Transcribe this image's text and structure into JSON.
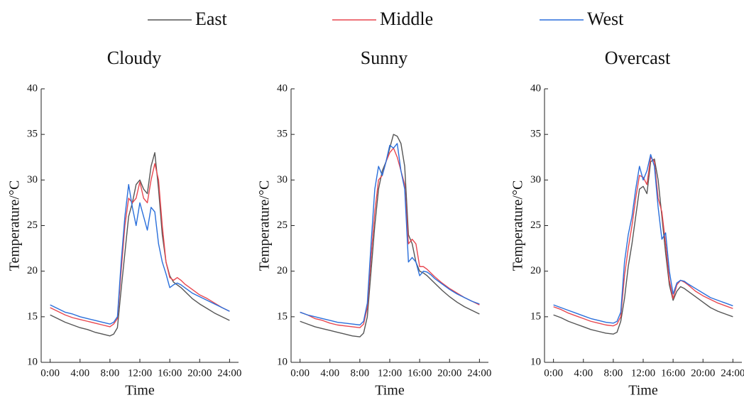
{
  "chart_data": [
    {
      "type": "line",
      "title": "Cloudy",
      "xlabel": "Time",
      "ylabel": "Temperature/°C",
      "x": [
        0,
        1,
        2,
        3,
        4,
        5,
        6,
        7,
        8,
        8.5,
        9,
        9.5,
        10,
        10.5,
        11,
        11.5,
        12,
        12.5,
        13,
        13.5,
        14,
        14.5,
        15,
        15.5,
        16,
        16.5,
        17,
        17.5,
        18,
        19,
        20,
        21,
        22,
        23,
        24
      ],
      "xlim": [
        -1.2,
        25.2
      ],
      "ylim": [
        10,
        40
      ],
      "xticks": [
        {
          "value": 0,
          "label": "0:00"
        },
        {
          "value": 4,
          "label": "4:00"
        },
        {
          "value": 8,
          "label": "8:00"
        },
        {
          "value": 12,
          "label": "12:00"
        },
        {
          "value": 16,
          "label": "16:00"
        },
        {
          "value": 20,
          "label": "20:00"
        },
        {
          "value": 24,
          "label": "24:00"
        }
      ],
      "yticks": [
        10,
        15,
        20,
        25,
        30,
        35,
        40
      ],
      "series": [
        {
          "name": "East",
          "color": "#555555",
          "values": [
            15.2,
            14.8,
            14.4,
            14.1,
            13.8,
            13.6,
            13.3,
            13.1,
            12.9,
            13.1,
            13.8,
            18,
            22,
            26,
            27.5,
            29.5,
            30,
            29,
            28.5,
            31.5,
            33,
            29,
            24,
            21,
            19.5,
            18.8,
            18.5,
            18.2,
            17.8,
            17,
            16.4,
            15.9,
            15.4,
            15,
            14.6
          ]
        },
        {
          "name": "Middle",
          "color": "#e8474f",
          "values": [
            16,
            15.6,
            15.2,
            14.9,
            14.7,
            14.5,
            14.3,
            14.1,
            13.9,
            14.2,
            14.8,
            20,
            25,
            28,
            27.5,
            28,
            29.8,
            28,
            27.5,
            30,
            31.8,
            30,
            25,
            21,
            19.3,
            19,
            19.3,
            19,
            18.6,
            18,
            17.4,
            17,
            16.5,
            16,
            15.6
          ]
        },
        {
          "name": "West",
          "color": "#2a6fdb",
          "values": [
            16.3,
            15.9,
            15.5,
            15.3,
            15,
            14.8,
            14.6,
            14.4,
            14.2,
            14.4,
            15,
            21,
            26,
            29.5,
            27,
            25,
            27.5,
            26,
            24.5,
            27,
            26.5,
            23,
            21,
            19.7,
            18.2,
            18.5,
            18.7,
            18.5,
            18.2,
            17.6,
            17.2,
            16.8,
            16.4,
            16,
            15.6
          ]
        }
      ]
    },
    {
      "type": "line",
      "title": "Sunny",
      "xlabel": "Time",
      "ylabel": "Temperature/°C",
      "x": [
        0,
        1,
        2,
        3,
        4,
        5,
        6,
        7,
        8,
        8.5,
        9,
        9.5,
        10,
        10.5,
        11,
        11.5,
        12,
        12.5,
        13,
        13.5,
        14,
        14.5,
        15,
        15.5,
        16,
        16.5,
        17,
        17.5,
        18,
        19,
        20,
        21,
        22,
        23,
        24
      ],
      "xlim": [
        -1.2,
        25.2
      ],
      "ylim": [
        10,
        40
      ],
      "xticks": [
        {
          "value": 0,
          "label": "0:00"
        },
        {
          "value": 4,
          "label": "4:00"
        },
        {
          "value": 8,
          "label": "8:00"
        },
        {
          "value": 12,
          "label": "12:00"
        },
        {
          "value": 16,
          "label": "16:00"
        },
        {
          "value": 20,
          "label": "20:00"
        },
        {
          "value": 24,
          "label": "24:00"
        }
      ],
      "yticks": [
        10,
        15,
        20,
        25,
        30,
        35,
        40
      ],
      "series": [
        {
          "color": "#555555",
          "values": [
            14.5,
            14.2,
            13.9,
            13.7,
            13.5,
            13.3,
            13.1,
            12.9,
            12.8,
            13.2,
            15,
            20,
            25,
            29,
            31,
            32,
            33.5,
            35,
            34.8,
            34,
            31.5,
            24,
            23,
            21,
            20,
            19.8,
            19.5,
            19.1,
            18.7,
            17.9,
            17.2,
            16.6,
            16.1,
            15.7,
            15.3
          ]
        },
        {
          "color": "#e8474f",
          "values": [
            15.5,
            15.2,
            14.8,
            14.6,
            14.3,
            14.1,
            14,
            13.9,
            13.8,
            14.2,
            16,
            21.5,
            26.5,
            30,
            30.5,
            32,
            33,
            33.5,
            32.5,
            31,
            29.5,
            23,
            23.5,
            23,
            20.5,
            20.5,
            20.2,
            19.8,
            19.4,
            18.7,
            18.1,
            17.6,
            17.1,
            16.7,
            16.3
          ]
        },
        {
          "color": "#2a6fdb",
          "values": [
            15.5,
            15.2,
            15,
            14.8,
            14.6,
            14.4,
            14.3,
            14.2,
            14.1,
            14.5,
            16.5,
            23,
            29,
            31.5,
            30.5,
            32,
            33.8,
            33.5,
            34,
            31,
            29,
            21,
            21.5,
            21,
            19.5,
            20,
            19.9,
            19.6,
            19.2,
            18.6,
            18,
            17.5,
            17.1,
            16.7,
            16.4
          ]
        }
      ]
    },
    {
      "type": "line",
      "title": "Overcast",
      "xlabel": "Time",
      "ylabel": "Temperature/°C",
      "x": [
        0,
        1,
        2,
        3,
        4,
        5,
        6,
        7,
        8,
        8.5,
        9,
        9.5,
        10,
        10.5,
        11,
        11.5,
        12,
        12.5,
        13,
        13.5,
        14,
        14.5,
        15,
        15.5,
        16,
        16.5,
        17,
        17.5,
        18,
        19,
        20,
        21,
        22,
        23,
        24
      ],
      "xlim": [
        -1.2,
        25.2
      ],
      "ylim": [
        10,
        40
      ],
      "xticks": [
        {
          "value": 0,
          "label": "0:00"
        },
        {
          "value": 4,
          "label": "4:00"
        },
        {
          "value": 8,
          "label": "8:00"
        },
        {
          "value": 12,
          "label": "12:00"
        },
        {
          "value": 16,
          "label": "16:00"
        },
        {
          "value": 20,
          "label": "20:00"
        },
        {
          "value": 24,
          "label": "24:00"
        }
      ],
      "yticks": [
        10,
        15,
        20,
        25,
        30,
        35,
        40
      ],
      "series": [
        {
          "color": "#555555",
          "values": [
            15.2,
            14.9,
            14.5,
            14.2,
            13.9,
            13.6,
            13.4,
            13.2,
            13.1,
            13.3,
            14.5,
            17,
            20.5,
            23,
            26,
            29,
            29.3,
            28.5,
            32,
            32.3,
            30,
            26,
            22,
            18.5,
            16.8,
            17.8,
            18.3,
            18.1,
            17.8,
            17.2,
            16.6,
            16,
            15.6,
            15.3,
            15
          ]
        },
        {
          "color": "#e8474f",
          "values": [
            16.1,
            15.8,
            15.4,
            15.1,
            14.8,
            14.5,
            14.3,
            14.1,
            14,
            14.2,
            15,
            19.5,
            22.5,
            25,
            28,
            30.5,
            30.3,
            29.5,
            32.5,
            32,
            28,
            26.5,
            23,
            19,
            17,
            18.5,
            19,
            18.8,
            18.5,
            17.8,
            17.3,
            16.9,
            16.5,
            16.2,
            15.9
          ]
        },
        {
          "color": "#2a6fdb",
          "values": [
            16.3,
            16,
            15.7,
            15.4,
            15.1,
            14.8,
            14.6,
            14.4,
            14.3,
            14.5,
            15.5,
            21,
            24,
            26,
            29,
            31.5,
            30,
            31,
            32.8,
            31.5,
            27,
            23.5,
            24.2,
            20,
            17.5,
            18.7,
            19,
            18.9,
            18.6,
            18.1,
            17.6,
            17.1,
            16.8,
            16.5,
            16.2
          ]
        }
      ]
    }
  ]
}
